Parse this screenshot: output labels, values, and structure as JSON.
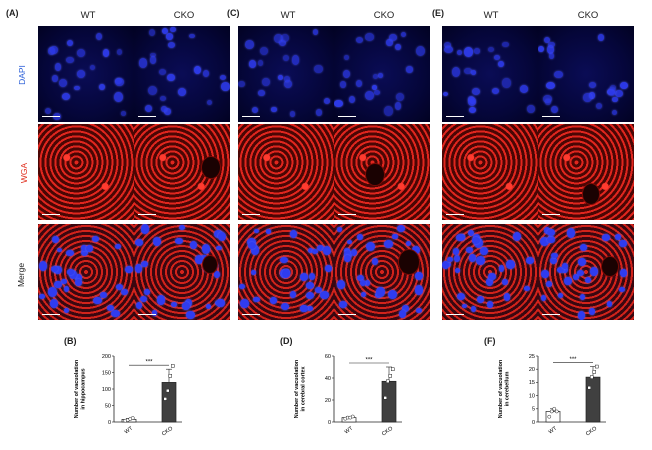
{
  "panels": {
    "A": "(A)",
    "B": "(B)",
    "C": "(C)",
    "D": "(D)",
    "E": "(E)",
    "F": "(F)"
  },
  "columns": {
    "wt": "WT",
    "cko": "CKO"
  },
  "rows": {
    "dapi": {
      "label": "DAPI",
      "color": "#2b5fd8"
    },
    "wga": {
      "label": "WGA",
      "color": "#e03020"
    },
    "merge": {
      "label": "Merge",
      "color": "#222222"
    }
  },
  "chart_data": [
    {
      "panel": "B",
      "type": "bar",
      "categories": [
        "WT",
        "CKO"
      ],
      "values": [
        8,
        120
      ],
      "errors": [
        3,
        40
      ],
      "points": [
        [
          4,
          6,
          9,
          12
        ],
        [
          70,
          95,
          140,
          170
        ]
      ],
      "ylabel": "Number of vacuolation in hippocampus",
      "ylim": [
        0,
        200
      ],
      "yticks": [
        "0",
        "50",
        "100",
        "150",
        "200"
      ],
      "significance": "***",
      "bar_colors": [
        "#ffffff",
        "#404040"
      ]
    },
    {
      "panel": "D",
      "type": "bar",
      "categories": [
        "WT",
        "CKO"
      ],
      "values": [
        4,
        37
      ],
      "errors": [
        1,
        13
      ],
      "points": [
        [
          3,
          4,
          4,
          5
        ],
        [
          22,
          37,
          42,
          48
        ]
      ],
      "ylabel": "Number of vacuolation in cerebral cortex",
      "ylim": [
        0,
        60
      ],
      "yticks": [
        "0",
        "20",
        "40",
        "60"
      ],
      "significance": "***",
      "bar_colors": [
        "#ffffff",
        "#404040"
      ]
    },
    {
      "panel": "F",
      "type": "bar",
      "categories": [
        "WT",
        "CKO"
      ],
      "values": [
        4,
        17
      ],
      "errors": [
        1,
        4
      ],
      "points": [
        [
          2,
          4,
          5,
          4
        ],
        [
          13,
          17,
          19,
          21
        ]
      ],
      "ylabel": "Number of vacuolation in cerebellum",
      "ylim": [
        0,
        25
      ],
      "yticks": [
        "0",
        "5",
        "10",
        "15",
        "20",
        "25"
      ],
      "significance": "***",
      "bar_colors": [
        "#ffffff",
        "#404040"
      ]
    }
  ]
}
